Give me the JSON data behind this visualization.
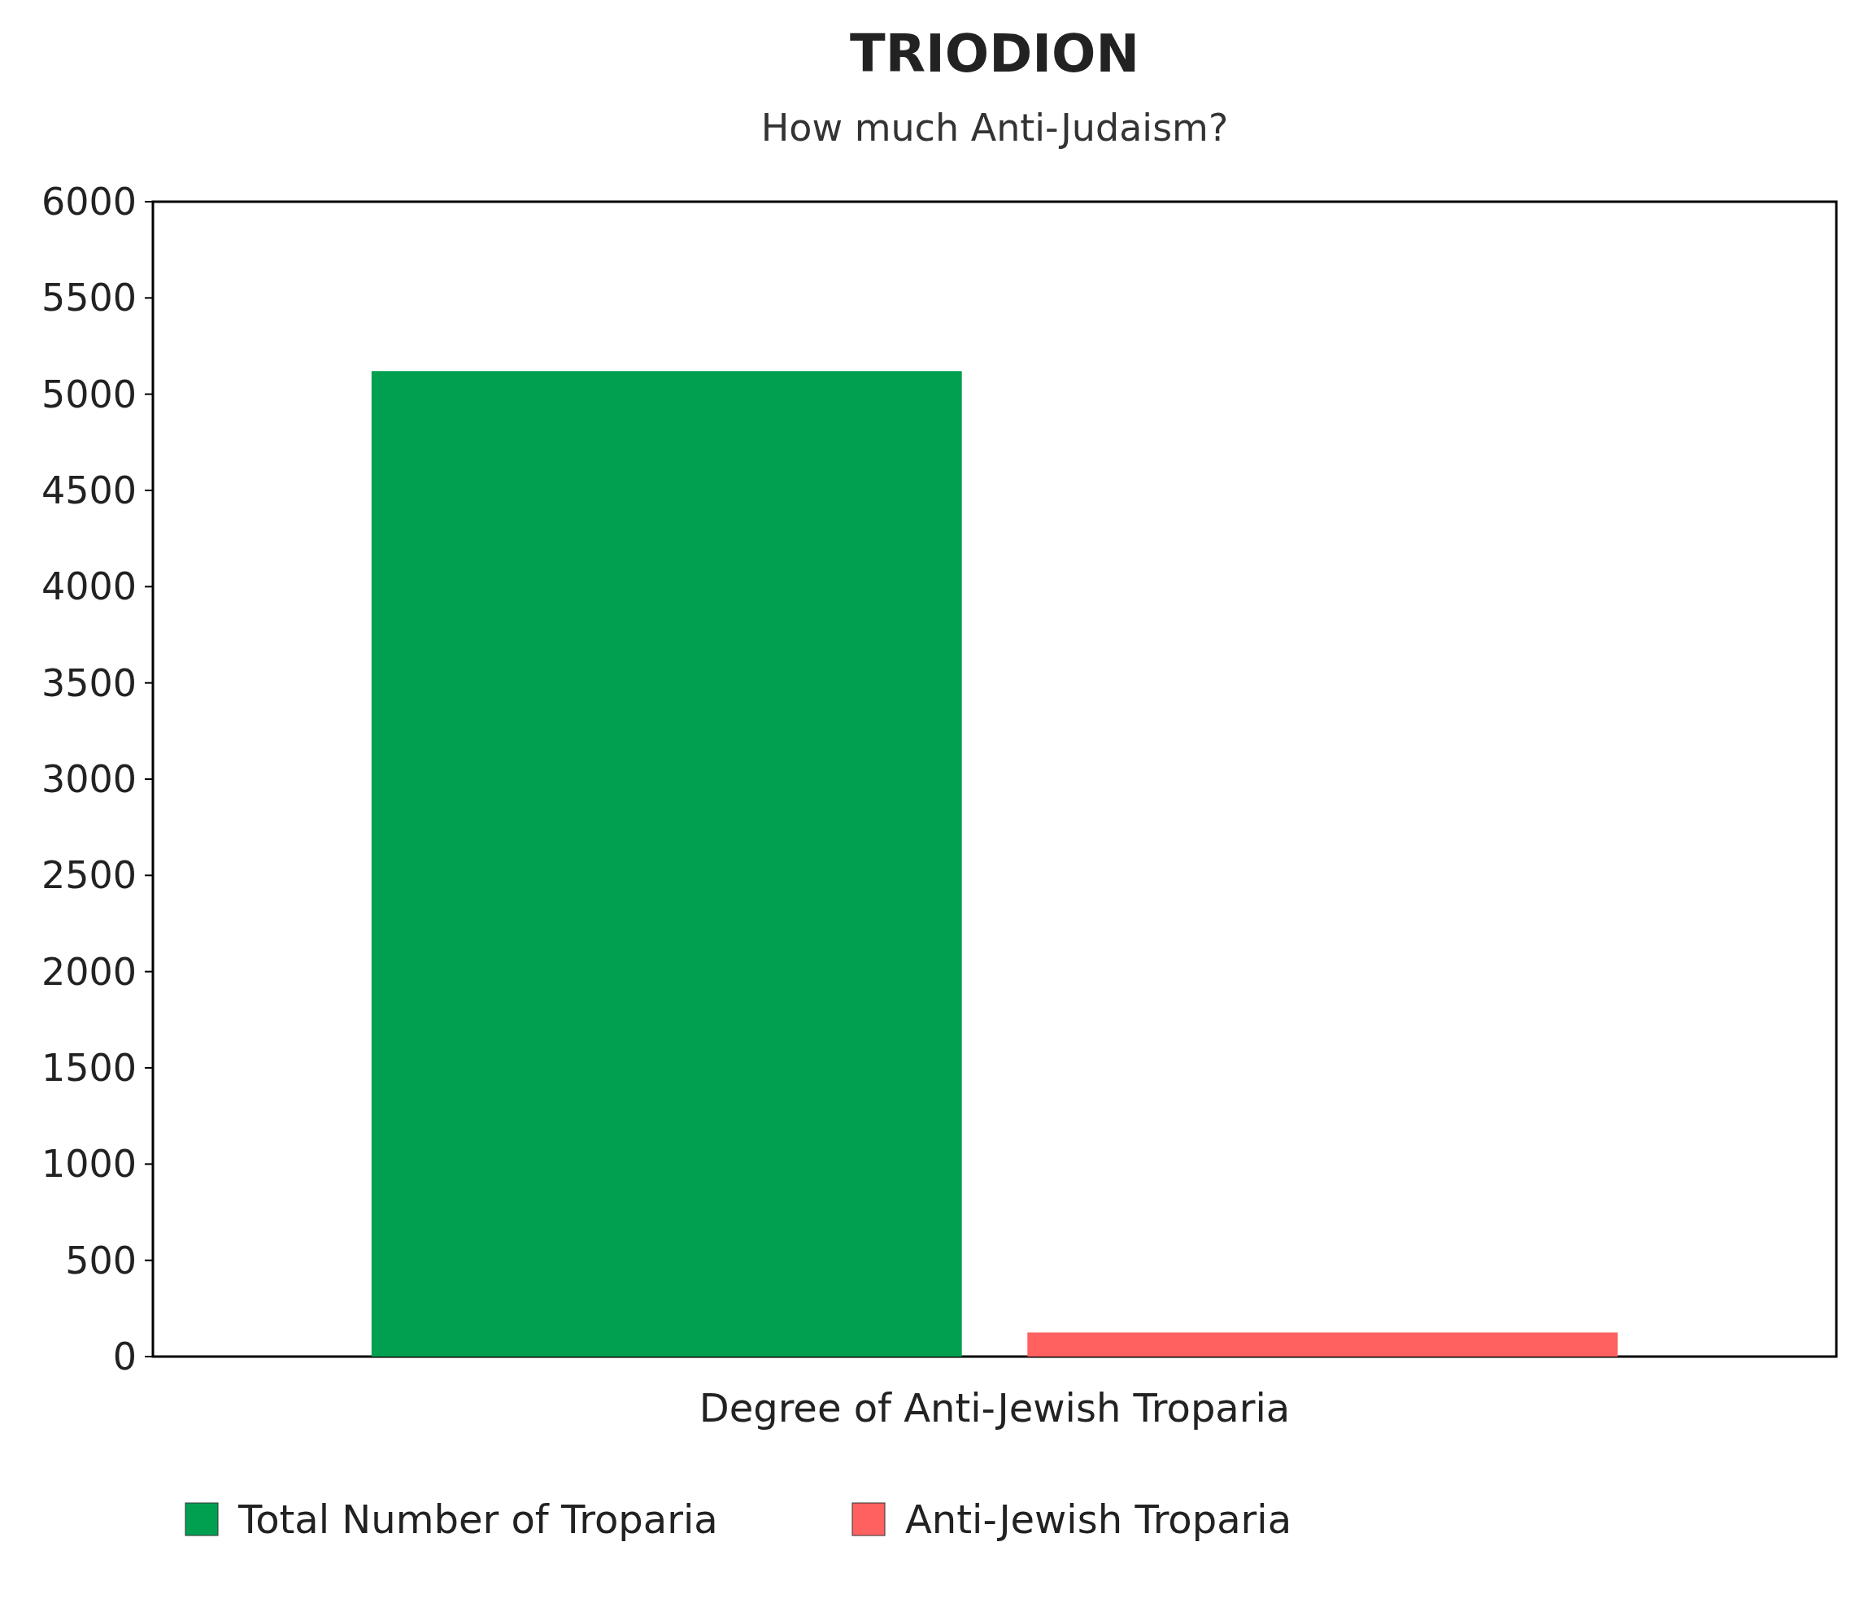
{
  "chart_data": {
    "type": "bar",
    "title": "TRIODION",
    "subtitle": "How much Anti-Judaism?",
    "xlabel": "Degree of Anti-Jewish Troparia",
    "categories": [
      null
    ],
    "series": [
      {
        "name": "Total Number of Troparia",
        "color": "#00a050",
        "values": [
          5120
        ]
      },
      {
        "name": "Anti-Jewish Troparia",
        "color": "#ff6060",
        "values": [
          125
        ]
      }
    ],
    "ylim": [
      0,
      6000
    ],
    "yticks": [
      0,
      500,
      1000,
      1500,
      2000,
      2500,
      3000,
      3500,
      4000,
      4500,
      5000,
      5500,
      6000
    ],
    "grid": false,
    "legend": "bottom"
  }
}
